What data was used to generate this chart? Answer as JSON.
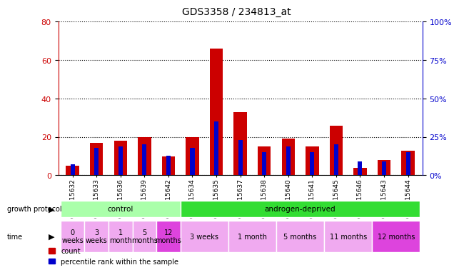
{
  "title": "GDS3358 / 234813_at",
  "samples": [
    "GSM215632",
    "GSM215633",
    "GSM215636",
    "GSM215639",
    "GSM215642",
    "GSM215634",
    "GSM215635",
    "GSM215637",
    "GSM215638",
    "GSM215640",
    "GSM215641",
    "GSM215645",
    "GSM215646",
    "GSM215643",
    "GSM215644"
  ],
  "count_values": [
    5,
    17,
    18,
    20,
    10,
    20,
    66,
    33,
    15,
    19,
    15,
    26,
    4,
    8,
    13
  ],
  "percentile_values": [
    7,
    18,
    19,
    20,
    13,
    18,
    35,
    23,
    15,
    19,
    15,
    20,
    9,
    9,
    15
  ],
  "left_ylim": [
    0,
    80
  ],
  "right_ylim": [
    0,
    100
  ],
  "left_yticks": [
    0,
    20,
    40,
    60,
    80
  ],
  "right_yticks": [
    0,
    25,
    50,
    75,
    100
  ],
  "right_yticklabels": [
    "0%",
    "25%",
    "50%",
    "75%",
    "100%"
  ],
  "bar_color_count": "#cc0000",
  "bar_color_percentile": "#0000cc",
  "count_bar_width": 0.55,
  "pct_bar_width": 0.18,
  "grid_color": "black",
  "plot_bg_color": "#ffffff",
  "title_fontsize": 10,
  "axis_tick_fontsize": 8,
  "sample_label_fontsize": 6.5,
  "groups": [
    {
      "label": "control",
      "start": 0,
      "end": 5,
      "color": "#aaffaa"
    },
    {
      "label": "androgen-deprived",
      "start": 5,
      "end": 15,
      "color": "#33dd33"
    }
  ],
  "time_groups": [
    {
      "label": "0\nweeks",
      "start": 0,
      "end": 1,
      "color": "#f0aaf0"
    },
    {
      "label": "3\nweeks",
      "start": 1,
      "end": 2,
      "color": "#f0aaf0"
    },
    {
      "label": "1\nmonth",
      "start": 2,
      "end": 3,
      "color": "#f0aaf0"
    },
    {
      "label": "5\nmonths",
      "start": 3,
      "end": 4,
      "color": "#f0aaf0"
    },
    {
      "label": "12\nmonths",
      "start": 4,
      "end": 5,
      "color": "#dd44dd"
    },
    {
      "label": "3 weeks",
      "start": 5,
      "end": 7,
      "color": "#f0aaf0"
    },
    {
      "label": "1 month",
      "start": 7,
      "end": 9,
      "color": "#f0aaf0"
    },
    {
      "label": "5 months",
      "start": 9,
      "end": 11,
      "color": "#f0aaf0"
    },
    {
      "label": "11 months",
      "start": 11,
      "end": 13,
      "color": "#f0aaf0"
    },
    {
      "label": "12 months",
      "start": 13,
      "end": 15,
      "color": "#dd44dd"
    }
  ],
  "legend_count_label": "count",
  "legend_percentile_label": "percentile rank within the sample",
  "gp_label": "growth protocol",
  "time_label": "time"
}
